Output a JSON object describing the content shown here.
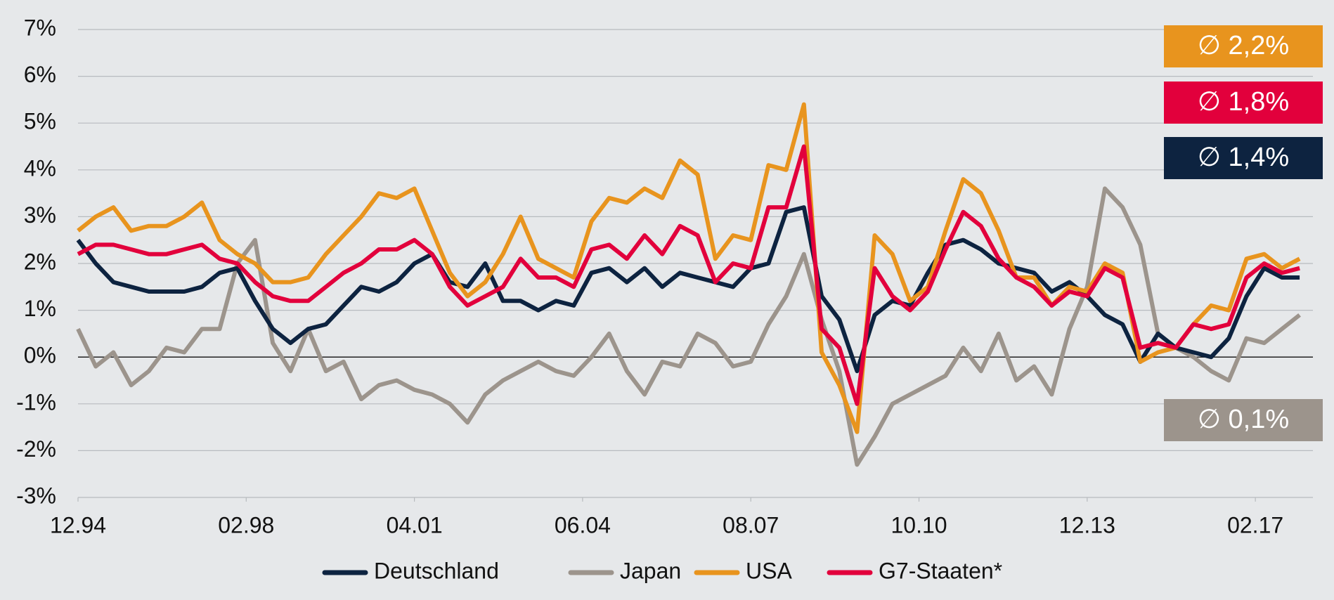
{
  "chart_data": {
    "type": "line",
    "x": [
      0,
      4,
      8,
      12,
      16,
      20,
      24,
      28,
      32,
      36,
      40,
      44,
      48,
      52,
      56,
      60,
      64,
      68,
      72,
      76,
      80,
      84,
      88,
      92,
      96,
      100,
      104,
      108,
      112,
      116,
      120,
      124,
      128,
      132,
      136,
      140,
      144,
      148,
      152,
      156,
      160,
      164,
      168,
      172,
      176,
      180,
      184,
      188,
      192,
      196,
      200,
      204,
      208,
      212,
      216,
      220,
      224,
      228,
      232,
      236,
      240,
      244,
      248,
      252,
      256,
      260,
      264,
      268,
      272,
      276
    ],
    "xlim": [
      0,
      279
    ],
    "xticks": [
      {
        "value": 0,
        "label": "12.94"
      },
      {
        "value": 38,
        "label": "02.98"
      },
      {
        "value": 76,
        "label": "04.01"
      },
      {
        "value": 114,
        "label": "06.04"
      },
      {
        "value": 152,
        "label": "08.07"
      },
      {
        "value": 190,
        "label": "10.10"
      },
      {
        "value": 228,
        "label": "12.13"
      },
      {
        "value": 266,
        "label": "02.17"
      }
    ],
    "ylim": [
      -3,
      7
    ],
    "yticks": [
      {
        "value": -3,
        "label": "-3%"
      },
      {
        "value": -2,
        "label": "-2%"
      },
      {
        "value": -1,
        "label": "-1%"
      },
      {
        "value": 0,
        "label": "0%"
      },
      {
        "value": 1,
        "label": "1%"
      },
      {
        "value": 2,
        "label": "2%"
      },
      {
        "value": 3,
        "label": "3%"
      },
      {
        "value": 4,
        "label": "4%"
      },
      {
        "value": 5,
        "label": "5%"
      },
      {
        "value": 6,
        "label": "6%"
      },
      {
        "value": 7,
        "label": "7%"
      }
    ],
    "grid": true,
    "legend": "bottom",
    "series": [
      {
        "name": "Deutschland",
        "color": "#0d2340",
        "values": [
          2.5,
          2.0,
          1.6,
          1.5,
          1.4,
          1.4,
          1.4,
          1.5,
          1.8,
          1.9,
          1.2,
          0.6,
          0.3,
          0.6,
          0.7,
          1.1,
          1.5,
          1.4,
          1.6,
          2.0,
          2.2,
          1.6,
          1.5,
          2.0,
          1.2,
          1.2,
          1.0,
          1.2,
          1.1,
          1.8,
          1.9,
          1.6,
          1.9,
          1.5,
          1.8,
          1.7,
          1.6,
          1.5,
          1.9,
          2.0,
          3.1,
          3.2,
          1.3,
          0.8,
          -0.3,
          0.9,
          1.2,
          1.1,
          1.8,
          2.4,
          2.5,
          2.3,
          2.0,
          1.9,
          1.8,
          1.4,
          1.6,
          1.3,
          0.9,
          0.7,
          -0.1,
          0.5,
          0.2,
          0.1,
          0.0,
          0.4,
          1.3,
          1.9,
          1.7,
          1.7
        ]
      },
      {
        "name": "Japan",
        "color": "#9c948c",
        "values": [
          0.6,
          -0.2,
          0.1,
          -0.6,
          -0.3,
          0.2,
          0.1,
          0.6,
          0.6,
          2.0,
          2.5,
          0.3,
          -0.3,
          0.6,
          -0.3,
          -0.1,
          -0.9,
          -0.6,
          -0.5,
          -0.7,
          -0.8,
          -1.0,
          -1.4,
          -0.8,
          -0.5,
          -0.3,
          -0.1,
          -0.3,
          -0.4,
          0.0,
          0.5,
          -0.3,
          -0.8,
          -0.1,
          -0.2,
          0.5,
          0.3,
          -0.2,
          -0.1,
          0.7,
          1.3,
          2.2,
          0.8,
          -0.3,
          -2.3,
          -1.7,
          -1.0,
          -0.8,
          -0.6,
          -0.4,
          0.2,
          -0.3,
          0.5,
          -0.5,
          -0.2,
          -0.8,
          0.6,
          1.5,
          3.6,
          3.2,
          2.4,
          0.5,
          0.2,
          0.0,
          -0.3,
          -0.5,
          0.4,
          0.3,
          0.6,
          0.9
        ]
      },
      {
        "name": "USA",
        "color": "#e8941e",
        "values": [
          2.7,
          3.0,
          3.2,
          2.7,
          2.8,
          2.8,
          3.0,
          3.3,
          2.5,
          2.2,
          2.0,
          1.6,
          1.6,
          1.7,
          2.2,
          2.6,
          3.0,
          3.5,
          3.4,
          3.6,
          2.7,
          1.8,
          1.3,
          1.6,
          2.2,
          3.0,
          2.1,
          1.9,
          1.7,
          2.9,
          3.4,
          3.3,
          3.6,
          3.4,
          4.2,
          3.9,
          2.1,
          2.6,
          2.5,
          4.1,
          4.0,
          5.4,
          0.1,
          -0.6,
          -1.6,
          2.6,
          2.2,
          1.2,
          1.5,
          2.7,
          3.8,
          3.5,
          2.7,
          1.7,
          1.7,
          1.1,
          1.5,
          1.4,
          2.0,
          1.8,
          -0.1,
          0.1,
          0.2,
          0.7,
          1.1,
          1.0,
          2.1,
          2.2,
          1.9,
          2.1
        ]
      },
      {
        "name": "G7-Staaten*",
        "color": "#e2003c",
        "values": [
          2.2,
          2.4,
          2.4,
          2.3,
          2.2,
          2.2,
          2.3,
          2.4,
          2.1,
          2.0,
          1.6,
          1.3,
          1.2,
          1.2,
          1.5,
          1.8,
          2.0,
          2.3,
          2.3,
          2.5,
          2.2,
          1.5,
          1.1,
          1.3,
          1.5,
          2.1,
          1.7,
          1.7,
          1.5,
          2.3,
          2.4,
          2.1,
          2.6,
          2.2,
          2.8,
          2.6,
          1.6,
          2.0,
          1.9,
          3.2,
          3.2,
          4.5,
          0.6,
          0.2,
          -1.0,
          1.9,
          1.3,
          1.0,
          1.4,
          2.3,
          3.1,
          2.8,
          2.1,
          1.7,
          1.5,
          1.1,
          1.4,
          1.3,
          1.9,
          1.7,
          0.2,
          0.3,
          0.2,
          0.7,
          0.6,
          0.7,
          1.7,
          2.0,
          1.8,
          1.9
        ]
      }
    ],
    "annotations": [
      {
        "text": "∅ 2,2%",
        "color": "#e8941e"
      },
      {
        "text": "∅ 1,8%",
        "color": "#e2003c"
      },
      {
        "text": "∅ 1,4%",
        "color": "#0d2340"
      },
      {
        "text": "∅ 0,1%",
        "color": "#9c948c"
      }
    ]
  }
}
